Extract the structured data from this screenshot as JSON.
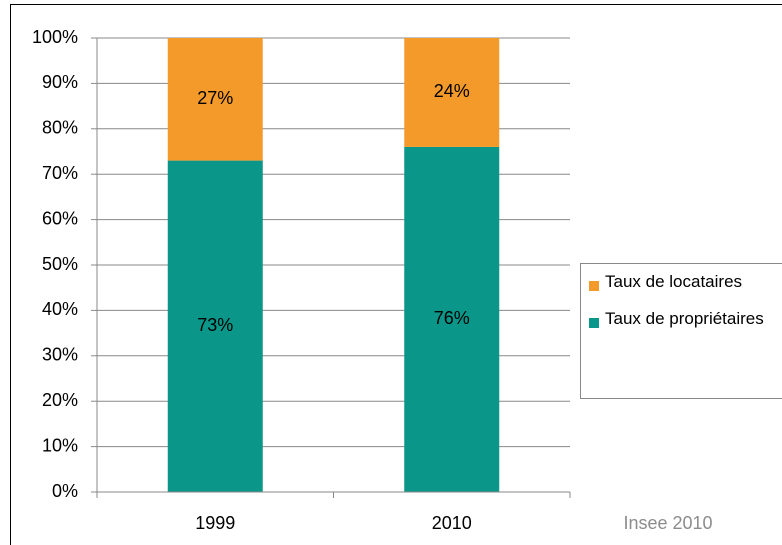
{
  "chart_data": {
    "type": "stacked_bar",
    "categories": [
      "1999",
      "2010"
    ],
    "series": [
      {
        "name": "Taux de propriétaires",
        "color": "#0a9688",
        "values": [
          73,
          76
        ],
        "value_labels": [
          "73%",
          "76%"
        ]
      },
      {
        "name": "Taux de locataires",
        "color": "#f39a2b",
        "values": [
          27,
          24
        ],
        "value_labels": [
          "27%",
          "24%"
        ]
      }
    ],
    "ylim": [
      0,
      100
    ],
    "yticks": [
      {
        "value": 0,
        "label": "0%"
      },
      {
        "value": 10,
        "label": "10%"
      },
      {
        "value": 20,
        "label": "20%"
      },
      {
        "value": 30,
        "label": "30%"
      },
      {
        "value": 40,
        "label": "40%"
      },
      {
        "value": 50,
        "label": "50%"
      },
      {
        "value": 60,
        "label": "60%"
      },
      {
        "value": 70,
        "label": "70%"
      },
      {
        "value": 80,
        "label": "80%"
      },
      {
        "value": 90,
        "label": "90%"
      },
      {
        "value": 100,
        "label": "100%"
      }
    ],
    "grid": true,
    "legend": "right",
    "annotation": "Insee 2010"
  }
}
